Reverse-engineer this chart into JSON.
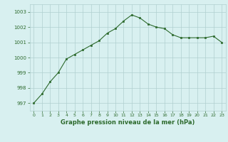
{
  "x": [
    0,
    1,
    2,
    3,
    4,
    5,
    6,
    7,
    8,
    9,
    10,
    11,
    12,
    13,
    14,
    15,
    16,
    17,
    18,
    19,
    20,
    21,
    22,
    23
  ],
  "y": [
    997.0,
    997.6,
    998.4,
    999.0,
    999.9,
    1000.2,
    1000.5,
    1000.8,
    1001.1,
    1001.6,
    1001.9,
    1002.4,
    1002.8,
    1002.6,
    1002.2,
    1002.0,
    1001.9,
    1001.5,
    1001.3,
    1001.3,
    1001.3,
    1001.3,
    1001.4,
    1001.0
  ],
  "line_color": "#2d6a2d",
  "marker_color": "#2d6a2d",
  "bg_color": "#d8f0f0",
  "grid_color": "#b0d0d0",
  "xlabel": "Graphe pression niveau de la mer (hPa)",
  "xlabel_color": "#2d6a2d",
  "ylim": [
    996.5,
    1003.5
  ],
  "xlim": [
    -0.5,
    23.5
  ],
  "yticks": [
    997,
    998,
    999,
    1000,
    1001,
    1002,
    1003
  ],
  "xticks": [
    0,
    1,
    2,
    3,
    4,
    5,
    6,
    7,
    8,
    9,
    10,
    11,
    12,
    13,
    14,
    15,
    16,
    17,
    18,
    19,
    20,
    21,
    22,
    23
  ]
}
